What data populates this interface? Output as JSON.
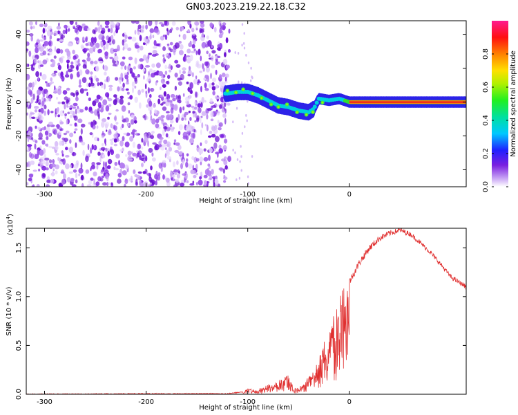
{
  "title": "GN03.2023.219.22.18.C32",
  "chart_data": [
    {
      "type": "heatmap",
      "xlabel": "Height of straight line (km)",
      "ylabel": "Frequency (Hz)",
      "xlim": [
        -318,
        115
      ],
      "ylim": [
        -50,
        48
      ],
      "xticks": [
        -300,
        -200,
        -100,
        0
      ],
      "yticks": [
        40,
        20,
        0,
        -20,
        -40
      ],
      "colorbar": {
        "label": "Normalized spectral amplitude",
        "range": [
          0,
          1
        ],
        "ticks": [
          "0.0",
          "0.2",
          "0.4",
          "0.6",
          "0.8"
        ]
      },
      "ridge": {
        "x": [
          -120,
          -110,
          -100,
          -90,
          -80,
          -70,
          -60,
          -50,
          -40,
          -35,
          -30,
          -20,
          -10,
          0,
          20,
          50,
          80,
          115
        ],
        "y": [
          5,
          6,
          6,
          4,
          1,
          -2,
          -3,
          -5,
          -6,
          -4,
          2,
          1,
          2,
          0,
          0,
          0,
          0,
          0
        ]
      },
      "grid": false
    },
    {
      "type": "line",
      "xlabel": "Height of straight line (km)",
      "ylabel": "SNR (10 * v/v)",
      "yscale_note": "(x10",
      "yscale_exp": "4",
      "xlim": [
        -318,
        115
      ],
      "ylim": [
        0,
        1.7
      ],
      "xticks": [
        -300,
        -200,
        -100,
        0
      ],
      "yticks": [
        "0.0",
        "0.5",
        "1.0",
        "1.5"
      ],
      "series": [
        {
          "color": "#e03030",
          "envelope": {
            "x": [
              -318,
              -200,
              -120,
              -105,
              -100,
              -90,
              -80,
              -70,
              -65,
              -60,
              -55,
              -50,
              -45,
              -40,
              -35,
              -30,
              -25,
              -20,
              -15,
              -10,
              -5,
              0,
              10,
              20,
              30,
              40,
              50,
              60,
              70,
              80,
              90,
              100,
              115
            ],
            "y": [
              0.005,
              0.01,
              0.01,
              0.03,
              0.06,
              0.05,
              0.1,
              0.15,
              0.2,
              0.23,
              0.06,
              0.08,
              0.1,
              0.2,
              0.25,
              0.4,
              0.55,
              0.7,
              0.85,
              1.0,
              1.1,
              1.15,
              1.35,
              1.5,
              1.6,
              1.65,
              1.68,
              1.64,
              1.55,
              1.45,
              1.33,
              1.2,
              1.1
            ]
          }
        }
      ],
      "grid": false
    }
  ]
}
